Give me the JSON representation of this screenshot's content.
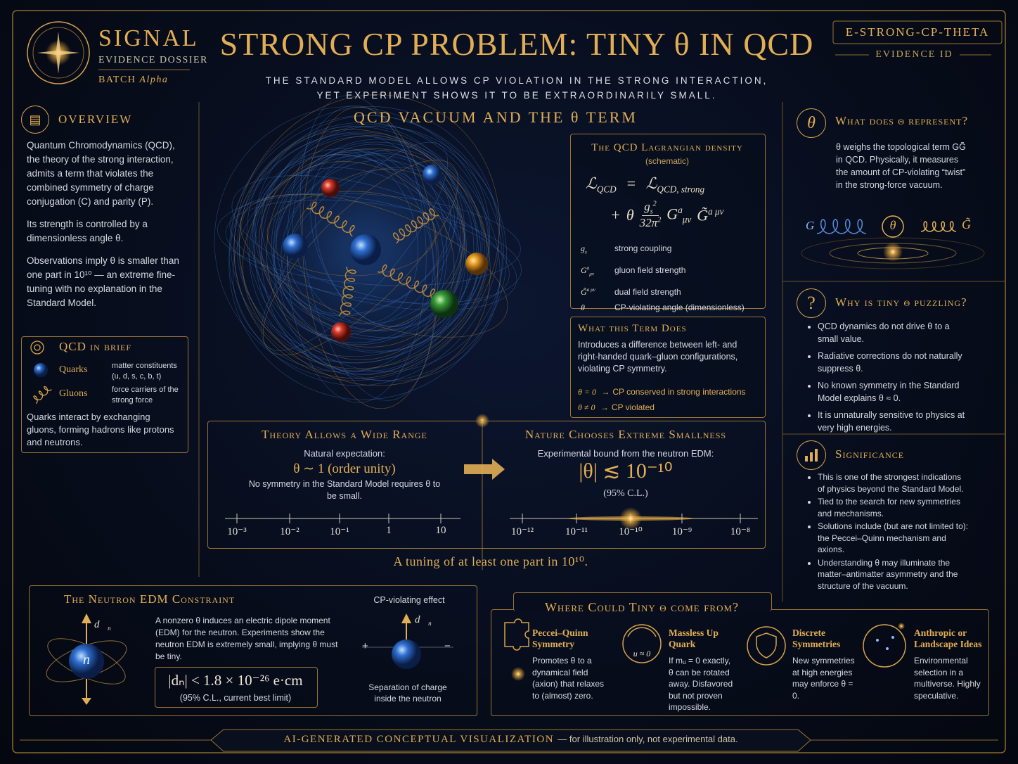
{
  "header": {
    "brand": "SIGNAL",
    "brand_sub": "EVIDENCE DOSSIER",
    "batch_label": "BATCH",
    "batch_name": "Alpha",
    "title": "STRONG CP PROBLEM: TINY θ IN QCD",
    "subtitle_lines": [
      "THE STANDARD MODEL ALLOWS CP VIOLATION IN THE STRONG INTERACTION,",
      "YET EXPERIMENT SHOWS IT TO BE EXTRAORDINARILY SMALL."
    ],
    "evidence_id": "E-STRONG-CP-THETA",
    "evidence_id_label": "EVIDENCE ID"
  },
  "overview": {
    "title": "OVERVIEW",
    "paragraphs": [
      "Quantum Chromodynamics (QCD), the theory of the strong interaction, admits a term that violates the combined symmetry of charge conjugation (C) and parity (P).",
      "Its strength is controlled by a dimensionless angle θ.",
      "Observations imply θ is smaller than one part in 10¹⁰ — an extreme fine-tuning with no explanation in the Standard Model."
    ]
  },
  "qcd_brief": {
    "title": "QCD in brief",
    "items": [
      {
        "name": "Quarks",
        "desc": "matter constituents (u, d, s, c, b, t)"
      },
      {
        "name": "Gluons",
        "desc": "force carriers of the strong force"
      }
    ],
    "note": "Quarks interact by exchanging gluons, forming hadrons like protons and neutrons."
  },
  "center": {
    "title": "QCD VACUUM AND THE θ TERM"
  },
  "lagrangian": {
    "title": "The QCD Lagrangian density",
    "note": "(schematic)",
    "eq1": [
      "ℒ",
      "QCD",
      "=",
      "ℒ",
      "QCD, strong"
    ],
    "eq2": [
      "+",
      "θ",
      "g",
      "s",
      "2",
      "32π",
      "2",
      "G",
      "a",
      "μν",
      "G̃",
      "a μν"
    ],
    "symbols": [
      {
        "sym": [
          "g",
          "s"
        ],
        "desc": "strong coupling"
      },
      {
        "sym": [
          "G",
          "a",
          "μν"
        ],
        "desc": "gluon field strength"
      },
      {
        "sym": [
          "G̃",
          "a μν"
        ],
        "desc": "dual field strength"
      },
      {
        "sym": [
          "θ"
        ],
        "desc": "CP-violating angle (dimensionless)"
      }
    ]
  },
  "term": {
    "title": "What this Term Does",
    "text": "Introduces a difference between left- and right-handed quark–gluon configurations, violating CP symmetry.",
    "arrow": "→",
    "cases": [
      {
        "cond": "θ = 0",
        "result": "CP conserved in strong interactions"
      },
      {
        "cond": "θ ≠ 0",
        "result": "CP violated"
      }
    ]
  },
  "theory": {
    "title": "Theory Allows a Wide Range",
    "label": "Natural expectation:",
    "value": "θ ∼ 1 (order unity)",
    "note": "No symmetry in the Standard Model requires θ to be small.",
    "ticks": [
      "10⁻³",
      "10⁻²",
      "10⁻¹",
      "1",
      "10"
    ]
  },
  "nature": {
    "title": "Nature Chooses Extreme Smallness",
    "label": "Experimental bound from the neutron EDM:",
    "bound": "|θ| ≲ 10⁻¹⁰",
    "confidence": "(95% C.L.)",
    "ticks": [
      "10⁻¹²",
      "10⁻¹¹",
      "10⁻¹⁰",
      "10⁻⁹",
      "10⁻⁸"
    ]
  },
  "tuning": "A tuning of at least one part in 10¹⁰.",
  "represent": {
    "icon": "θ",
    "title": "What does θ represent?",
    "text": "θ weighs the topological term GG̃ in QCD. Physically, it measures the amount of CP-violating “twist” in the strong-force vacuum.",
    "labels": [
      "G",
      "θ",
      "G̃"
    ]
  },
  "puzzling": {
    "icon": "?",
    "title": "Why is tiny θ puzzling?",
    "bullets": [
      "QCD dynamics do not drive θ to a small value.",
      "Radiative corrections do not naturally suppress θ.",
      "No known symmetry in the Standard Model explains θ ≈ 0.",
      "It is unnaturally sensitive to physics at very high energies."
    ]
  },
  "significance": {
    "title": "Significance",
    "bullets": [
      "This is one of the strongest indications of physics beyond the Standard Model.",
      "Tied to the search for new symmetries and mechanisms.",
      "Solutions include (but are not limited to): the Peccei–Quinn mechanism and axions.",
      "Understanding θ may illuminate the matter–antimatter asymmetry and the structure of the vacuum."
    ]
  },
  "neutron": {
    "title": "The Neutron EDM Constraint",
    "dipole": [
      "d⃗",
      "n"
    ],
    "particle": "n",
    "text": "A nonzero θ induces an electric dipole moment (EDM) for the neutron. Experiments show the neutron EDM is extremely small, implying θ must be tiny.",
    "bound": "|dₙ| < 1.8 × 10⁻²⁶ e·cm",
    "bound_note": "(95% C.L., current best limit)",
    "effect_title": "CP-violating effect",
    "plus": "+",
    "minus": "−",
    "effect_caption": "Separation of charge inside the neutron"
  },
  "origins": {
    "title": "Where Could Tiny θ come from?",
    "items": [
      {
        "name": "Peccei–Quinn Symmetry",
        "text": "Promotes θ to a dynamical field (axion) that relaxes to (almost) zero."
      },
      {
        "name": "Massless Up Quark",
        "icon_label": "u ≈ 0",
        "text": "If mᵤ = 0 exactly, θ can be rotated away. Disfavored but not proven impossible."
      },
      {
        "name": "Discrete Symmetries",
        "text": "New symmetries at high energies may enforce θ = 0."
      },
      {
        "name": "Anthropic or Landscape Ideas",
        "text": "Environmental selection in a multiverse. Highly speculative."
      }
    ]
  },
  "footer": {
    "main": "AI-GENERATED CONCEPTUAL VISUALIZATION",
    "note": "— for illustration only, not experimental data."
  }
}
